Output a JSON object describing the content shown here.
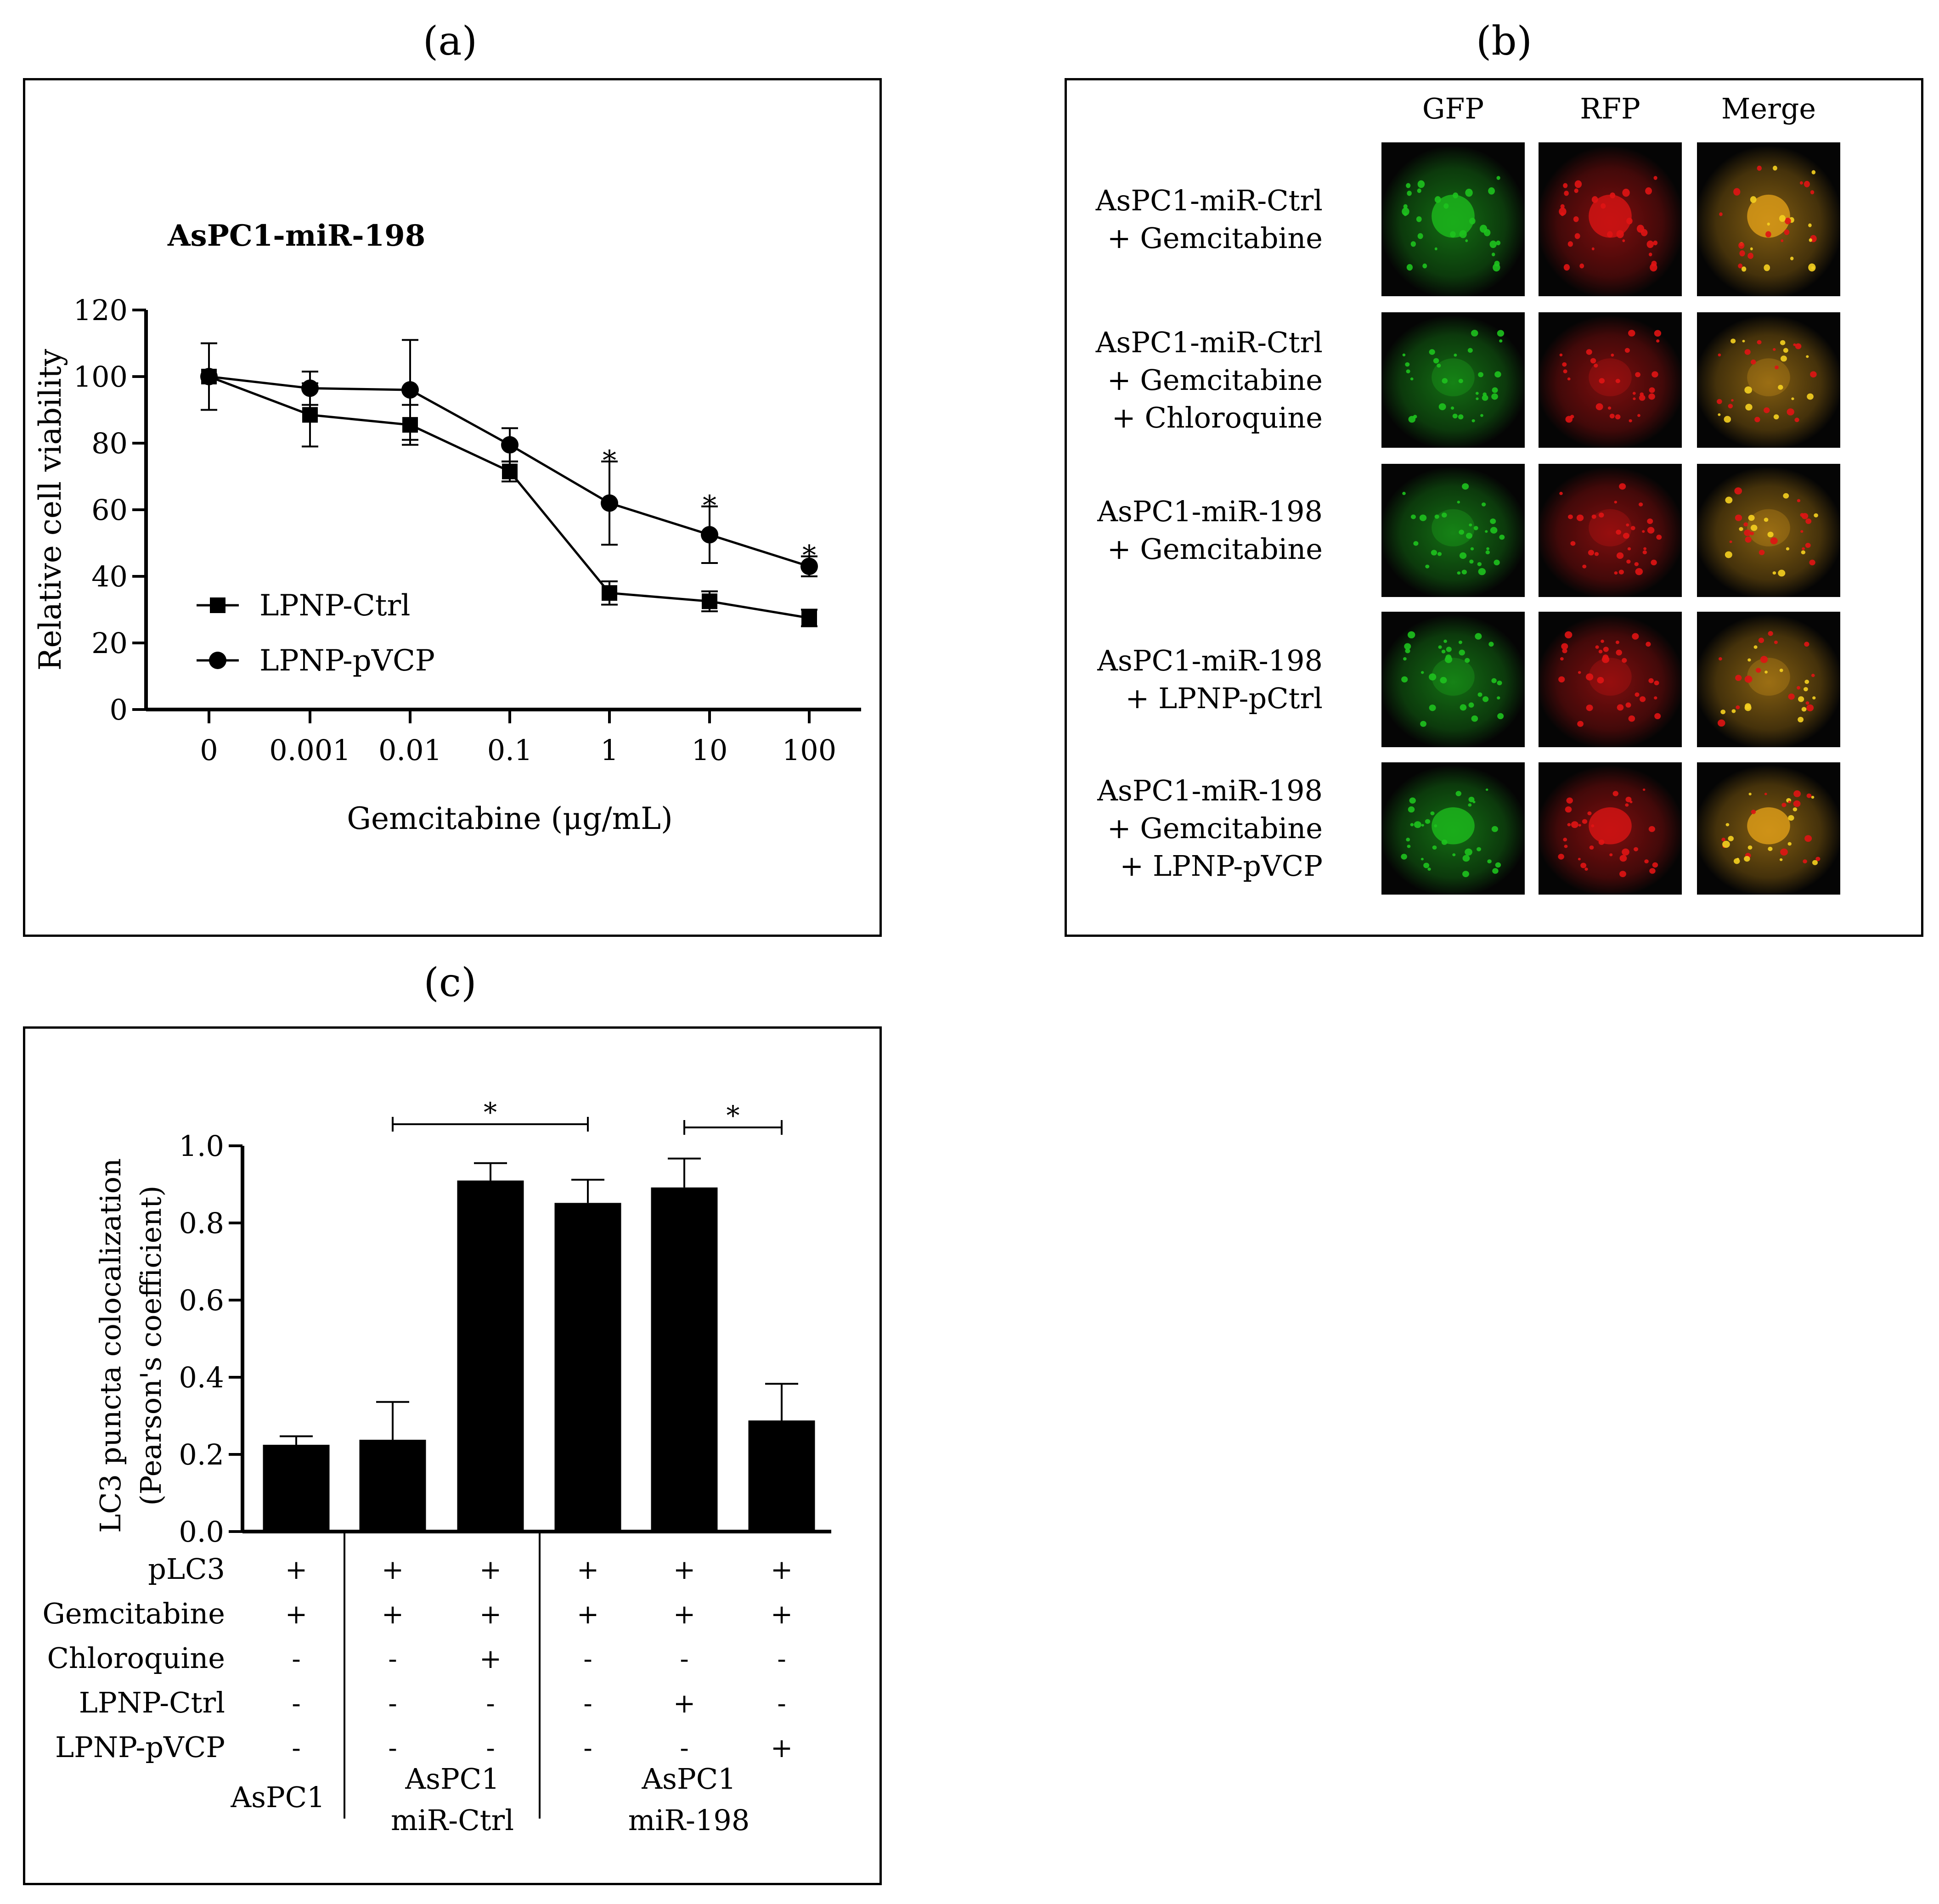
{
  "panels": {
    "a": {
      "label": "(a)"
    },
    "b": {
      "label": "(b)"
    },
    "c": {
      "label": "(c)"
    }
  },
  "colors": {
    "ink": "#000000",
    "gfp": "#1ec21e",
    "rfp": "#e01414",
    "merge": "#e8a41a"
  },
  "chart_data": [
    {
      "type": "line",
      "title": "AsPC1-miR-198",
      "xlabel": "Gemcitabine (μg/mL)",
      "ylabel": "Relative cell viability",
      "categories": [
        "0",
        "0.001",
        "0.01",
        "0.1",
        "1",
        "10",
        "100"
      ],
      "ylim": [
        0,
        120
      ],
      "yticks": [
        0,
        20,
        40,
        60,
        80,
        100,
        120
      ],
      "legend": "lower-left",
      "series": [
        {
          "name": "LPNP-Ctrl",
          "marker": "square",
          "values": [
            100,
            88.5,
            85.5,
            71.5,
            35,
            32.5,
            27.5
          ],
          "errors": [
            10,
            9.5,
            6,
            3,
            3.5,
            3,
            2.5
          ]
        },
        {
          "name": "LPNP-pVCP",
          "marker": "circle",
          "values": [
            100,
            96.5,
            96,
            79.5,
            62,
            52.5,
            43
          ],
          "errors": [
            10,
            5,
            15,
            5,
            12.5,
            8.5,
            3
          ]
        }
      ],
      "annotations": [
        {
          "category": "1",
          "text": "*"
        },
        {
          "category": "10",
          "text": "*"
        },
        {
          "category": "100",
          "text": "*"
        }
      ]
    },
    {
      "type": "bar",
      "ylabel_line1": "LC3 puncta colocalization",
      "ylabel_line2": "(Pearson's coefficient)",
      "ylim": [
        0,
        1.0
      ],
      "yticks": [
        "0.0",
        "0.2",
        "0.4",
        "0.6",
        "0.8",
        "1.0"
      ],
      "values": [
        0.225,
        0.238,
        0.91,
        0.852,
        0.892,
        0.288
      ],
      "errors": [
        0.022,
        0.098,
        0.045,
        0.06,
        0.075,
        0.095
      ],
      "significance": [
        {
          "from": 1,
          "to": 3,
          "text": "*"
        },
        {
          "from": 4,
          "to": 5,
          "text": "*"
        }
      ],
      "condition_table": [
        {
          "label": "pLC3",
          "values": [
            "+",
            "+",
            "+",
            "+",
            "+",
            "+"
          ]
        },
        {
          "label": "Gemcitabine",
          "values": [
            "+",
            "+",
            "+",
            "+",
            "+",
            "+"
          ]
        },
        {
          "label": "Chloroquine",
          "values": [
            "-",
            "-",
            "+",
            "-",
            "-",
            "-"
          ]
        },
        {
          "label": "LPNP-Ctrl",
          "values": [
            "-",
            "-",
            "-",
            "-",
            "+",
            "-"
          ]
        },
        {
          "label": "LPNP-pVCP",
          "values": [
            "-",
            "-",
            "-",
            "-",
            "-",
            "+"
          ]
        }
      ],
      "groups": [
        {
          "line1": "AsPC1",
          "line2": ""
        },
        {
          "line1": "AsPC1",
          "line2": "miR-Ctrl"
        },
        {
          "line1": "AsPC1",
          "line2": "miR-198"
        }
      ]
    }
  ],
  "micrographs": {
    "columns": [
      "GFP",
      "RFP",
      "Merge"
    ],
    "rows": [
      {
        "lines": [
          "AsPC1-miR-Ctrl",
          "+ Gemcitabine"
        ]
      },
      {
        "lines": [
          "AsPC1-miR-Ctrl",
          "+ Gemcitabine",
          "+ Chloroquine"
        ]
      },
      {
        "lines": [
          "AsPC1-miR-198",
          "+ Gemcitabine"
        ]
      },
      {
        "lines": [
          "AsPC1-miR-198",
          "+ LPNP-pCtrl"
        ]
      },
      {
        "lines": [
          "AsPC1-miR-198",
          "+ Gemcitabine",
          "+ LPNP-pVCP"
        ]
      }
    ]
  }
}
